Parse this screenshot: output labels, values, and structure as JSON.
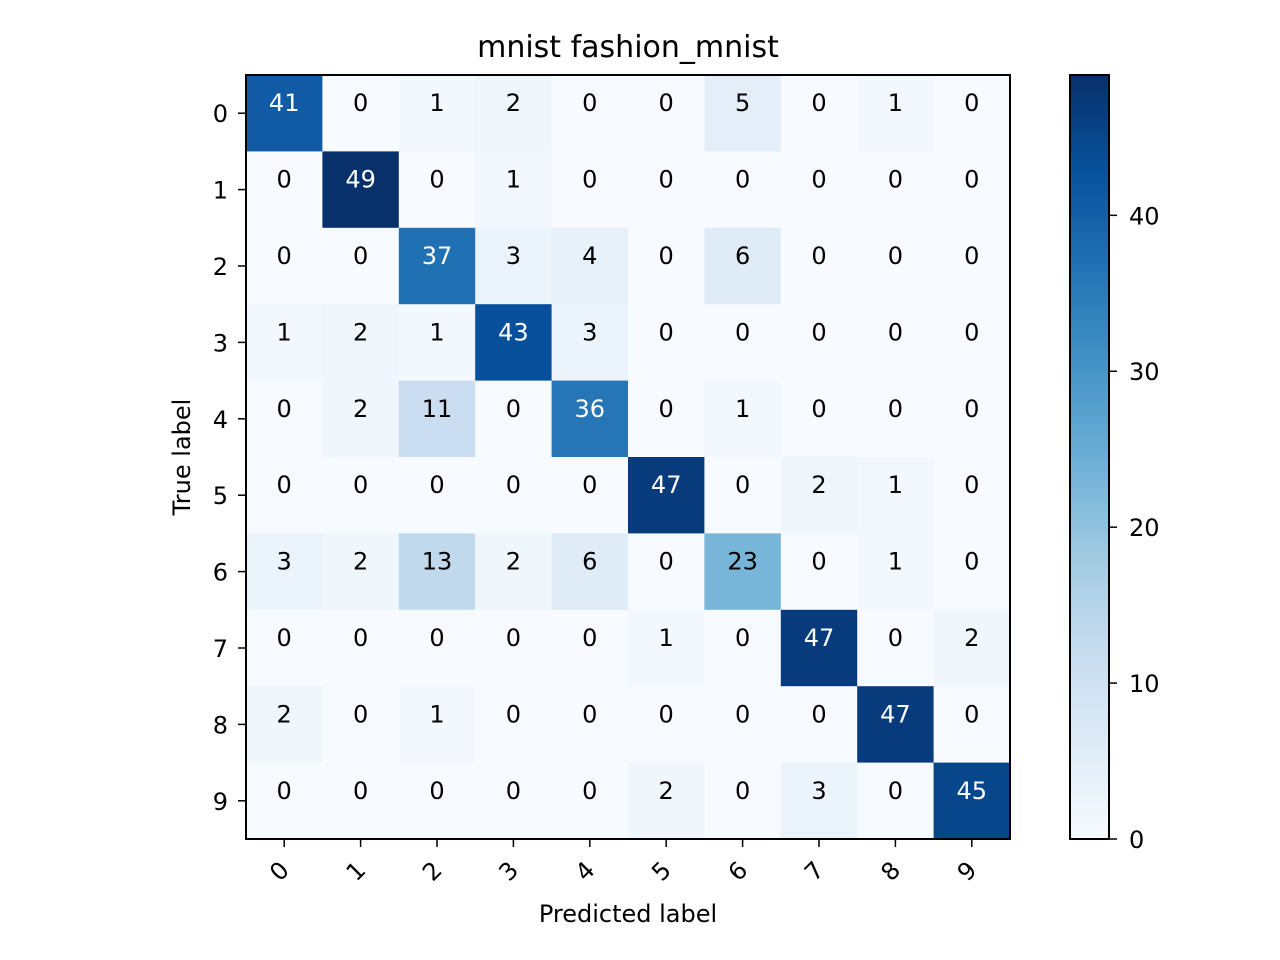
{
  "chart_data": {
    "type": "heatmap",
    "title": "mnist fashion_mnist",
    "xlabel": "Predicted label",
    "ylabel": "True label",
    "x_categories": [
      "0",
      "1",
      "2",
      "3",
      "4",
      "5",
      "6",
      "7",
      "8",
      "9"
    ],
    "y_categories": [
      "0",
      "1",
      "2",
      "3",
      "4",
      "5",
      "6",
      "7",
      "8",
      "9"
    ],
    "matrix": [
      [
        41,
        0,
        1,
        2,
        0,
        0,
        5,
        0,
        1,
        0
      ],
      [
        0,
        49,
        0,
        1,
        0,
        0,
        0,
        0,
        0,
        0
      ],
      [
        0,
        0,
        37,
        3,
        4,
        0,
        6,
        0,
        0,
        0
      ],
      [
        1,
        2,
        1,
        43,
        3,
        0,
        0,
        0,
        0,
        0
      ],
      [
        0,
        2,
        11,
        0,
        36,
        0,
        1,
        0,
        0,
        0
      ],
      [
        0,
        0,
        0,
        0,
        0,
        47,
        0,
        2,
        1,
        0
      ],
      [
        3,
        2,
        13,
        2,
        6,
        0,
        23,
        0,
        1,
        0
      ],
      [
        0,
        0,
        0,
        0,
        0,
        1,
        0,
        47,
        0,
        2
      ],
      [
        2,
        0,
        1,
        0,
        0,
        0,
        0,
        0,
        47,
        0
      ],
      [
        0,
        0,
        0,
        0,
        0,
        2,
        0,
        3,
        0,
        45
      ]
    ],
    "colormap": "Blues",
    "value_range": [
      0,
      49
    ],
    "colorbar_ticks": [
      0,
      10,
      20,
      30,
      40
    ],
    "x_tick_rotation_deg": 45,
    "grid": false,
    "legend": "colorbar right"
  }
}
